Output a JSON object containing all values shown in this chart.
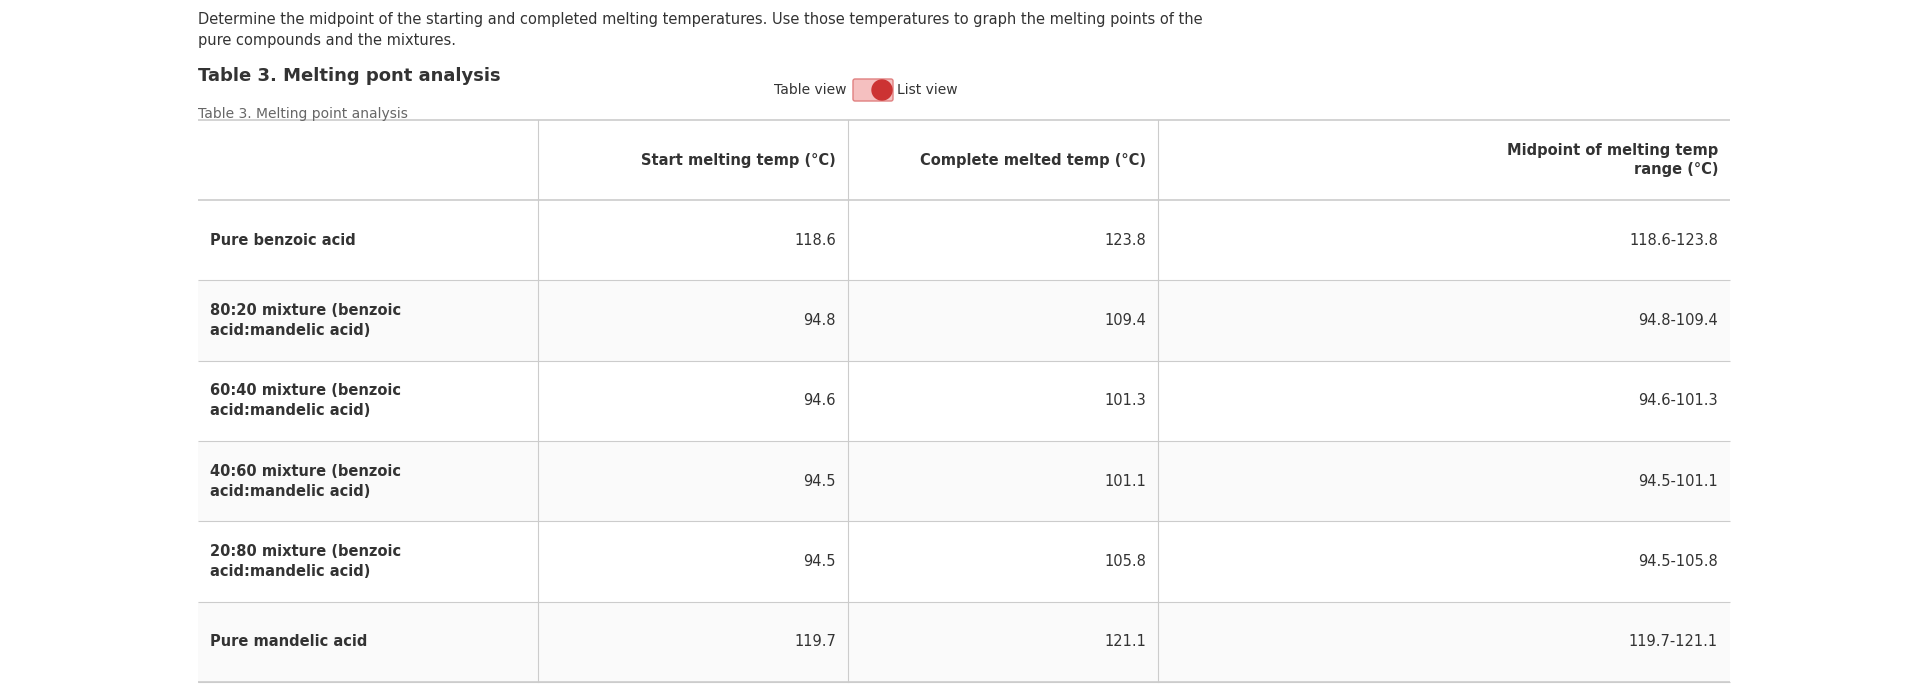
{
  "description_text": "Determine the midpoint of the starting and completed melting temperatures. Use those temperatures to graph the melting points of the\npure compounds and the mixtures.",
  "bold_title": "Table 3. Melting pont analysis",
  "subtitle": "Table 3. Melting point analysis",
  "toggle_label_left": "Table view",
  "toggle_label_right": "List view",
  "col_headers": [
    "",
    "Start melting temp (°C)",
    "Complete melted temp (°C)",
    "Midpoint of melting temp\nrange (°C)"
  ],
  "rows": [
    [
      "Pure benzoic acid",
      "118.6",
      "123.8",
      "118.6-123.8"
    ],
    [
      "80:20 mixture (benzoic\nacid:mandelic acid)",
      "94.8",
      "109.4",
      "94.8-109.4"
    ],
    [
      "60:40 mixture (benzoic\nacid:mandelic acid)",
      "94.6",
      "101.3",
      "94.6-101.3"
    ],
    [
      "40:60 mixture (benzoic\nacid:mandelic acid)",
      "94.5",
      "101.1",
      "94.5-101.1"
    ],
    [
      "20:80 mixture (benzoic\nacid:mandelic acid)",
      "94.5",
      "105.8",
      "94.5-105.8"
    ],
    [
      "Pure mandelic acid",
      "119.7",
      "121.1",
      "119.7-121.1"
    ]
  ],
  "background_color": "#ffffff",
  "text_color": "#333333",
  "border_color": "#cccccc",
  "toggle_color": "#cc3333",
  "toggle_bg_color": "#f5c0c0"
}
